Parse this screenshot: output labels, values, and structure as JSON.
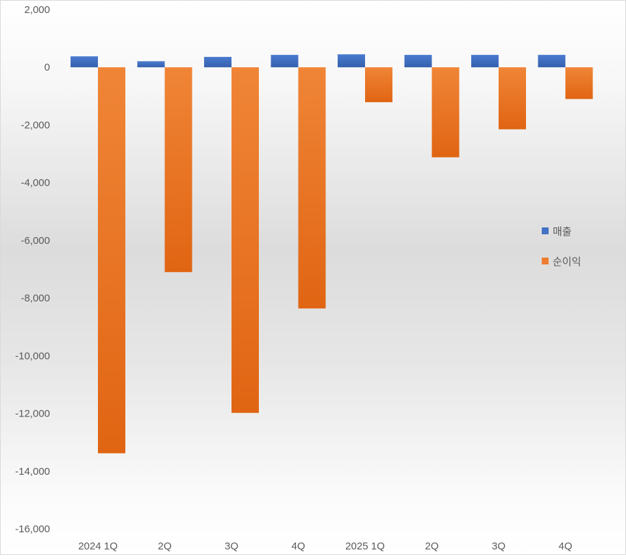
{
  "chart_data": {
    "type": "bar",
    "title": "",
    "xlabel": "",
    "ylabel": "",
    "categories": [
      "2024 1Q",
      "2Q",
      "3Q",
      "4Q",
      "2025 1Q",
      "2Q",
      "3Q",
      "4Q"
    ],
    "series": [
      {
        "name": "매출",
        "color": "#4472C4",
        "values": [
          380,
          210,
          360,
          430,
          450,
          430,
          430,
          430
        ]
      },
      {
        "name": "순이익",
        "color": "#ED7D31",
        "values": [
          -13380,
          -7100,
          -11980,
          -8360,
          -1210,
          -3120,
          -2150,
          -1100
        ]
      }
    ],
    "ylim": [
      -16000,
      2000
    ],
    "yticks": [
      2000,
      0,
      -2000,
      -4000,
      -6000,
      -8000,
      -10000,
      -12000,
      -14000,
      -16000
    ],
    "ytick_labels": [
      "2,000",
      "0",
      "-2,000",
      "-4,000",
      "-6,000",
      "-8,000",
      "-10,000",
      "-12,000",
      "-14,000",
      "-16,000"
    ],
    "grid": false,
    "legend": "right"
  }
}
